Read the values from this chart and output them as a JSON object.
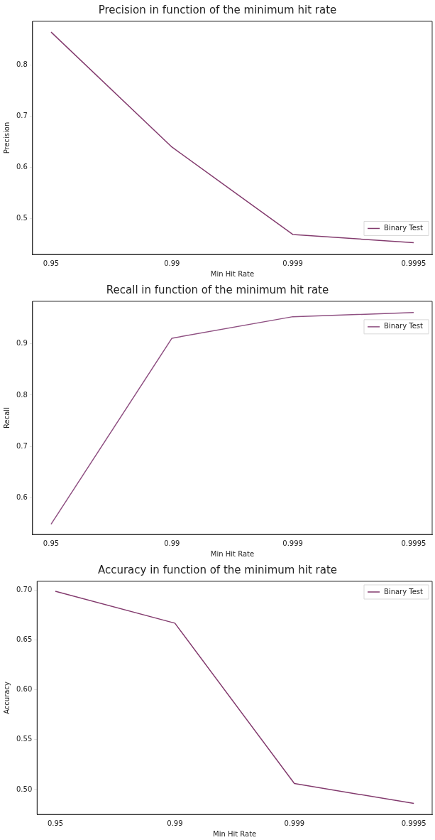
{
  "chart_data": [
    {
      "type": "line",
      "title": "Precision in function of the minimum hit rate",
      "xlabel": "Min Hit Rate",
      "ylabel": "Precision",
      "categories": [
        "0.95",
        "0.99",
        "0.999",
        "0.9995"
      ],
      "series": [
        {
          "name": "Binary Test",
          "color": "#833b6e",
          "values": [
            0.865,
            0.64,
            0.469,
            0.453
          ]
        }
      ],
      "ylim": [
        0.43,
        0.886
      ],
      "yticks": [
        {
          "value": 0.5,
          "label": "0.5"
        },
        {
          "value": 0.6,
          "label": "0.6"
        },
        {
          "value": 0.7,
          "label": "0.7"
        },
        {
          "value": 0.8,
          "label": "0.8"
        }
      ],
      "grid": false,
      "legend": "bottom right",
      "marker": "none"
    },
    {
      "type": "line",
      "title": "Recall in function of the minimum hit rate",
      "xlabel": "Min Hit Rate",
      "ylabel": "Recall",
      "categories": [
        "0.95",
        "0.99",
        "0.999",
        "0.9995"
      ],
      "series": [
        {
          "name": "Binary Test",
          "color": "#8f5082",
          "values": [
            0.548,
            0.911,
            0.953,
            0.961
          ]
        }
      ],
      "ylim": [
        0.528,
        0.983
      ],
      "yticks": [
        {
          "value": 0.6,
          "label": "0.6"
        },
        {
          "value": 0.7,
          "label": "0.7"
        },
        {
          "value": 0.8,
          "label": "0.8"
        },
        {
          "value": 0.9,
          "label": "0.9"
        }
      ],
      "grid": false,
      "legend": "top right",
      "marker": "none"
    },
    {
      "type": "line",
      "title": "Accuracy in function of the minimum hit rate",
      "xlabel": "Min Hit Rate",
      "ylabel": "Accuracy",
      "categories": [
        "0.95",
        "0.99",
        "0.999",
        "0.9995"
      ],
      "series": [
        {
          "name": "Binary Test",
          "color": "#833b6e",
          "values": [
            0.699,
            0.667,
            0.506,
            0.486
          ]
        }
      ],
      "ylim": [
        0.475,
        0.709
      ],
      "yticks": [
        {
          "value": 0.5,
          "label": "0.50"
        },
        {
          "value": 0.55,
          "label": "0.55"
        },
        {
          "value": 0.6,
          "label": "0.60"
        },
        {
          "value": 0.65,
          "label": "0.65"
        },
        {
          "value": 0.7,
          "label": "0.70"
        }
      ],
      "grid": false,
      "legend": "top right",
      "marker": "none"
    }
  ]
}
